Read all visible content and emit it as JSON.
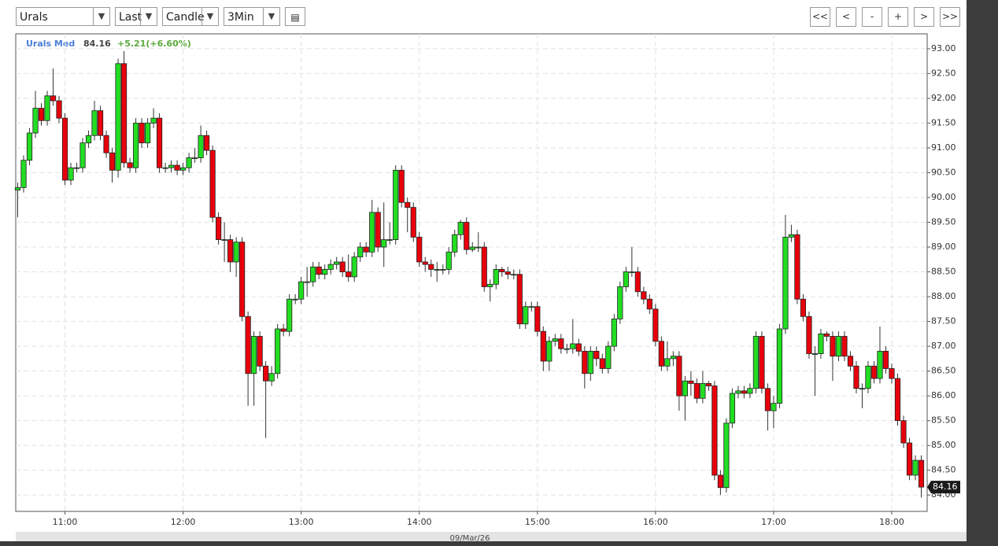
{
  "toolbar": {
    "symbol": "Urals",
    "field": "Last",
    "style": "Candle",
    "interval": "3Min",
    "nav": [
      "<<",
      "<",
      "-",
      "+",
      ">",
      ">>"
    ]
  },
  "chart_data": {
    "type": "candlestick",
    "name": "Urals Med",
    "last": 84.16,
    "change": "+5.21(+6.60%)",
    "x_label": "09/Mar/26",
    "up_color": "#22dd22",
    "down_color": "#e8000b",
    "grid": true,
    "xlim": [
      "10:35",
      "18:18"
    ],
    "xticks": [
      "11:00",
      "12:00",
      "13:00",
      "14:00",
      "15:00",
      "16:00",
      "17:00",
      "18:00"
    ],
    "ylim": [
      83.67,
      93.3
    ],
    "yticks": [
      {
        "value": 84,
        "label": "84.00"
      },
      {
        "value": 84.5,
        "label": "84.50"
      },
      {
        "value": 85,
        "label": "85.00"
      },
      {
        "value": 85.5,
        "label": "85.50"
      },
      {
        "value": 86,
        "label": "86.00"
      },
      {
        "value": 86.5,
        "label": "86.50"
      },
      {
        "value": 87,
        "label": "87.00"
      },
      {
        "value": 87.5,
        "label": "87.50"
      },
      {
        "value": 88,
        "label": "88.00"
      },
      {
        "value": 88.5,
        "label": "88.50"
      },
      {
        "value": 89,
        "label": "89.00"
      },
      {
        "value": 89.5,
        "label": "89.50"
      },
      {
        "value": 90,
        "label": "90.00"
      },
      {
        "value": 90.5,
        "label": "90.50"
      },
      {
        "value": 91,
        "label": "91.00"
      },
      {
        "value": 91.5,
        "label": "91.50"
      },
      {
        "value": 92,
        "label": "92.00"
      },
      {
        "value": 92.5,
        "label": "92.50"
      },
      {
        "value": 93,
        "label": "93.00"
      }
    ],
    "x": [
      "10:36",
      "10:39",
      "10:42",
      "10:45",
      "10:48",
      "10:51",
      "10:54",
      "10:57",
      "11:00",
      "11:03",
      "11:06",
      "11:09",
      "11:12",
      "11:15",
      "11:18",
      "11:21",
      "11:24",
      "11:27",
      "11:30",
      "11:33",
      "11:36",
      "11:39",
      "11:42",
      "11:45",
      "11:48",
      "11:51",
      "11:54",
      "11:57",
      "12:00",
      "12:03",
      "12:06",
      "12:09",
      "12:12",
      "12:15",
      "12:18",
      "12:21",
      "12:24",
      "12:27",
      "12:30",
      "12:33",
      "12:36",
      "12:39",
      "12:42",
      "12:45",
      "12:48",
      "12:51",
      "12:54",
      "12:57",
      "13:00",
      "13:03",
      "13:06",
      "13:09",
      "13:12",
      "13:15",
      "13:18",
      "13:21",
      "13:24",
      "13:27",
      "13:30",
      "13:33",
      "13:36",
      "13:39",
      "13:42",
      "13:45",
      "13:48",
      "13:51",
      "13:54",
      "13:57",
      "14:00",
      "14:03",
      "14:06",
      "14:09",
      "14:12",
      "14:15",
      "14:18",
      "14:21",
      "14:24",
      "14:27",
      "14:30",
      "14:33",
      "14:36",
      "14:39",
      "14:42",
      "14:45",
      "14:48",
      "14:51",
      "14:54",
      "14:57",
      "15:00",
      "15:03",
      "15:06",
      "15:09",
      "15:12",
      "15:15",
      "15:18",
      "15:21",
      "15:24",
      "15:27",
      "15:30",
      "15:33",
      "15:36",
      "15:39",
      "15:42",
      "15:45",
      "15:48",
      "15:51",
      "15:54",
      "15:57",
      "16:00",
      "16:03",
      "16:06",
      "16:09",
      "16:12",
      "16:15",
      "16:18",
      "16:21",
      "16:24",
      "16:27",
      "16:30",
      "16:33",
      "16:36",
      "16:39",
      "16:42",
      "16:45",
      "16:48",
      "16:51",
      "16:54",
      "16:57",
      "17:00",
      "17:03",
      "17:06",
      "17:09",
      "17:12",
      "17:15",
      "17:18",
      "17:21",
      "17:24",
      "17:27",
      "17:30",
      "17:33",
      "17:36",
      "17:39",
      "17:42",
      "17:45",
      "17:48",
      "17:51",
      "17:54",
      "17:57",
      "18:00",
      "18:03",
      "18:06",
      "18:09",
      "18:12",
      "18:15"
    ],
    "open": [
      90.15,
      90.2,
      90.75,
      91.3,
      91.8,
      91.55,
      92.05,
      91.95,
      91.6,
      90.35,
      90.6,
      90.6,
      91.1,
      91.25,
      91.75,
      91.25,
      90.9,
      90.55,
      92.7,
      90.7,
      90.6,
      91.5,
      91.1,
      91.5,
      91.6,
      90.6,
      90.6,
      90.65,
      90.55,
      90.6,
      90.8,
      90.8,
      91.25,
      90.95,
      89.6,
      89.15,
      89.15,
      88.7,
      89.1,
      87.6,
      86.45,
      87.2,
      86.6,
      86.3,
      86.45,
      87.35,
      87.3,
      87.95,
      87.95,
      88.3,
      88.3,
      88.6,
      88.45,
      88.55,
      88.65,
      88.7,
      88.5,
      88.4,
      88.8,
      89.0,
      88.9,
      89.7,
      89.0,
      89.15,
      89.15,
      90.55,
      89.9,
      89.8,
      89.2,
      88.7,
      88.65,
      88.55,
      88.55,
      88.55,
      88.9,
      89.25,
      89.5,
      88.95,
      89.0,
      89.0,
      88.2,
      88.25,
      88.55,
      88.5,
      88.45,
      88.45,
      87.45,
      87.8,
      87.8,
      87.3,
      86.7,
      87.1,
      87.15,
      86.95,
      86.95,
      87.05,
      86.9,
      86.45,
      86.9,
      86.75,
      86.55,
      87.0,
      87.55,
      88.2,
      88.5,
      88.5,
      88.1,
      87.95,
      87.75,
      87.1,
      86.6,
      86.75,
      86.8,
      86.0,
      86.3,
      86.25,
      85.95,
      86.25,
      86.2,
      84.4,
      84.15,
      85.45,
      86.05,
      86.1,
      86.05,
      86.15,
      87.2,
      86.15,
      85.7,
      85.85,
      87.35,
      89.2,
      89.25,
      87.95,
      87.6,
      86.85,
      86.85,
      87.25,
      87.2,
      86.8,
      87.2,
      86.8,
      86.6,
      86.15,
      86.15,
      86.6,
      86.35,
      86.9,
      86.55,
      86.35,
      85.5,
      85.05,
      84.4,
      84.7
    ],
    "high": [
      90.3,
      90.85,
      91.4,
      92.15,
      91.9,
      92.15,
      92.6,
      92.05,
      91.7,
      90.7,
      90.7,
      91.2,
      91.35,
      91.95,
      91.85,
      91.35,
      91.0,
      92.8,
      92.95,
      90.8,
      91.6,
      91.6,
      91.6,
      91.8,
      91.7,
      90.7,
      90.75,
      90.75,
      90.7,
      90.9,
      91.0,
      91.45,
      91.35,
      91.05,
      89.7,
      89.5,
      89.25,
      89.2,
      89.2,
      87.7,
      87.3,
      87.3,
      86.7,
      86.6,
      87.45,
      87.45,
      88.05,
      88.05,
      88.4,
      88.6,
      88.7,
      88.7,
      88.65,
      88.75,
      88.8,
      88.8,
      88.85,
      88.9,
      89.1,
      89.1,
      89.95,
      89.8,
      89.9,
      89.5,
      90.65,
      90.65,
      90.0,
      89.9,
      89.3,
      88.8,
      88.75,
      88.7,
      88.65,
      89.0,
      89.35,
      89.55,
      89.6,
      89.1,
      89.3,
      89.1,
      88.35,
      88.65,
      88.6,
      88.6,
      88.55,
      88.55,
      87.9,
      87.9,
      87.9,
      87.4,
      87.2,
      87.25,
      87.25,
      87.05,
      87.55,
      87.15,
      87.0,
      87.0,
      87.0,
      86.85,
      87.1,
      87.65,
      88.3,
      88.6,
      89.0,
      88.6,
      88.2,
      88.05,
      87.85,
      87.2,
      87.1,
      86.9,
      86.9,
      86.4,
      86.5,
      86.35,
      86.5,
      86.3,
      86.3,
      84.5,
      85.55,
      86.15,
      86.2,
      86.2,
      86.25,
      87.3,
      87.3,
      86.25,
      86.0,
      87.45,
      89.65,
      89.45,
      89.35,
      88.05,
      87.7,
      87.0,
      87.35,
      87.3,
      87.3,
      87.3,
      87.3,
      86.9,
      86.7,
      86.25,
      86.7,
      86.7,
      87.4,
      87.0,
      86.65,
      86.45,
      85.6,
      85.15,
      84.8,
      84.8
    ],
    "low": [
      89.6,
      90.1,
      90.65,
      91.2,
      91.45,
      91.45,
      91.85,
      91.5,
      90.25,
      90.25,
      90.5,
      90.5,
      91.0,
      91.15,
      91.15,
      90.8,
      90.3,
      90.4,
      90.6,
      90.5,
      90.5,
      91.0,
      91.0,
      91.4,
      90.5,
      90.5,
      90.5,
      90.45,
      90.45,
      90.5,
      90.7,
      90.7,
      90.85,
      89.5,
      89.05,
      88.7,
      88.5,
      88.4,
      87.5,
      85.8,
      85.8,
      86.5,
      85.15,
      86.2,
      86.35,
      87.2,
      87.2,
      87.85,
      87.85,
      88.0,
      88.2,
      88.35,
      88.35,
      88.45,
      88.55,
      88.4,
      88.3,
      88.3,
      88.7,
      88.8,
      88.8,
      88.9,
      88.6,
      89.05,
      89.05,
      89.8,
      89.3,
      89.1,
      88.6,
      88.5,
      88.4,
      88.3,
      88.45,
      88.45,
      88.8,
      89.15,
      88.85,
      88.9,
      88.9,
      88.1,
      87.9,
      88.15,
      88.4,
      88.35,
      88.35,
      87.35,
      87.35,
      87.7,
      87.2,
      86.5,
      86.5,
      87.0,
      86.85,
      86.85,
      86.85,
      86.8,
      86.15,
      86.3,
      86.6,
      86.45,
      86.45,
      86.9,
      87.45,
      88.1,
      88.4,
      88.0,
      87.85,
      87.65,
      87.0,
      86.5,
      86.5,
      86.6,
      85.7,
      85.5,
      86.0,
      85.85,
      85.85,
      86.1,
      84.3,
      84.0,
      84.05,
      85.35,
      85.95,
      85.95,
      85.95,
      86.05,
      86.05,
      85.3,
      85.35,
      85.75,
      87.25,
      89.1,
      87.85,
      87.5,
      86.75,
      86.0,
      86.75,
      87.1,
      86.3,
      86.7,
      86.7,
      86.5,
      86.05,
      85.75,
      86.05,
      86.25,
      86.25,
      86.45,
      86.25,
      85.4,
      84.95,
      84.3,
      84.3,
      83.95
    ],
    "close": [
      90.2,
      90.75,
      91.3,
      91.8,
      91.55,
      92.05,
      91.95,
      91.6,
      90.35,
      90.6,
      90.6,
      91.1,
      91.25,
      91.75,
      91.25,
      90.9,
      90.55,
      92.7,
      90.7,
      90.6,
      91.5,
      91.1,
      91.5,
      91.6,
      90.6,
      90.6,
      90.65,
      90.55,
      90.6,
      90.8,
      90.8,
      91.25,
      90.95,
      89.6,
      89.15,
      89.15,
      88.7,
      89.1,
      87.6,
      86.45,
      87.2,
      86.6,
      86.3,
      86.45,
      87.35,
      87.3,
      87.95,
      87.95,
      88.3,
      88.3,
      88.6,
      88.45,
      88.55,
      88.65,
      88.7,
      88.5,
      88.4,
      88.8,
      89.0,
      88.9,
      89.7,
      89.0,
      89.15,
      89.15,
      90.55,
      89.9,
      89.8,
      89.2,
      88.7,
      88.65,
      88.55,
      88.55,
      88.55,
      88.9,
      89.25,
      89.5,
      88.95,
      89.0,
      89.0,
      88.2,
      88.25,
      88.55,
      88.5,
      88.45,
      88.45,
      87.45,
      87.8,
      87.8,
      87.3,
      86.7,
      87.1,
      87.15,
      86.95,
      86.95,
      87.05,
      86.9,
      86.45,
      86.9,
      86.75,
      86.55,
      87.0,
      87.55,
      88.2,
      88.5,
      88.5,
      88.1,
      87.95,
      87.75,
      87.1,
      86.6,
      86.75,
      86.8,
      86.0,
      86.3,
      86.25,
      85.95,
      86.25,
      86.2,
      84.4,
      84.15,
      85.45,
      86.05,
      86.1,
      86.05,
      86.15,
      87.2,
      86.15,
      85.7,
      85.85,
      87.35,
      89.2,
      89.25,
      87.95,
      87.6,
      86.85,
      86.85,
      87.25,
      87.2,
      86.8,
      87.2,
      86.8,
      86.6,
      86.15,
      86.15,
      86.6,
      86.35,
      86.9,
      86.55,
      86.35,
      85.5,
      85.05,
      84.4,
      84.7,
      84.16
    ]
  }
}
